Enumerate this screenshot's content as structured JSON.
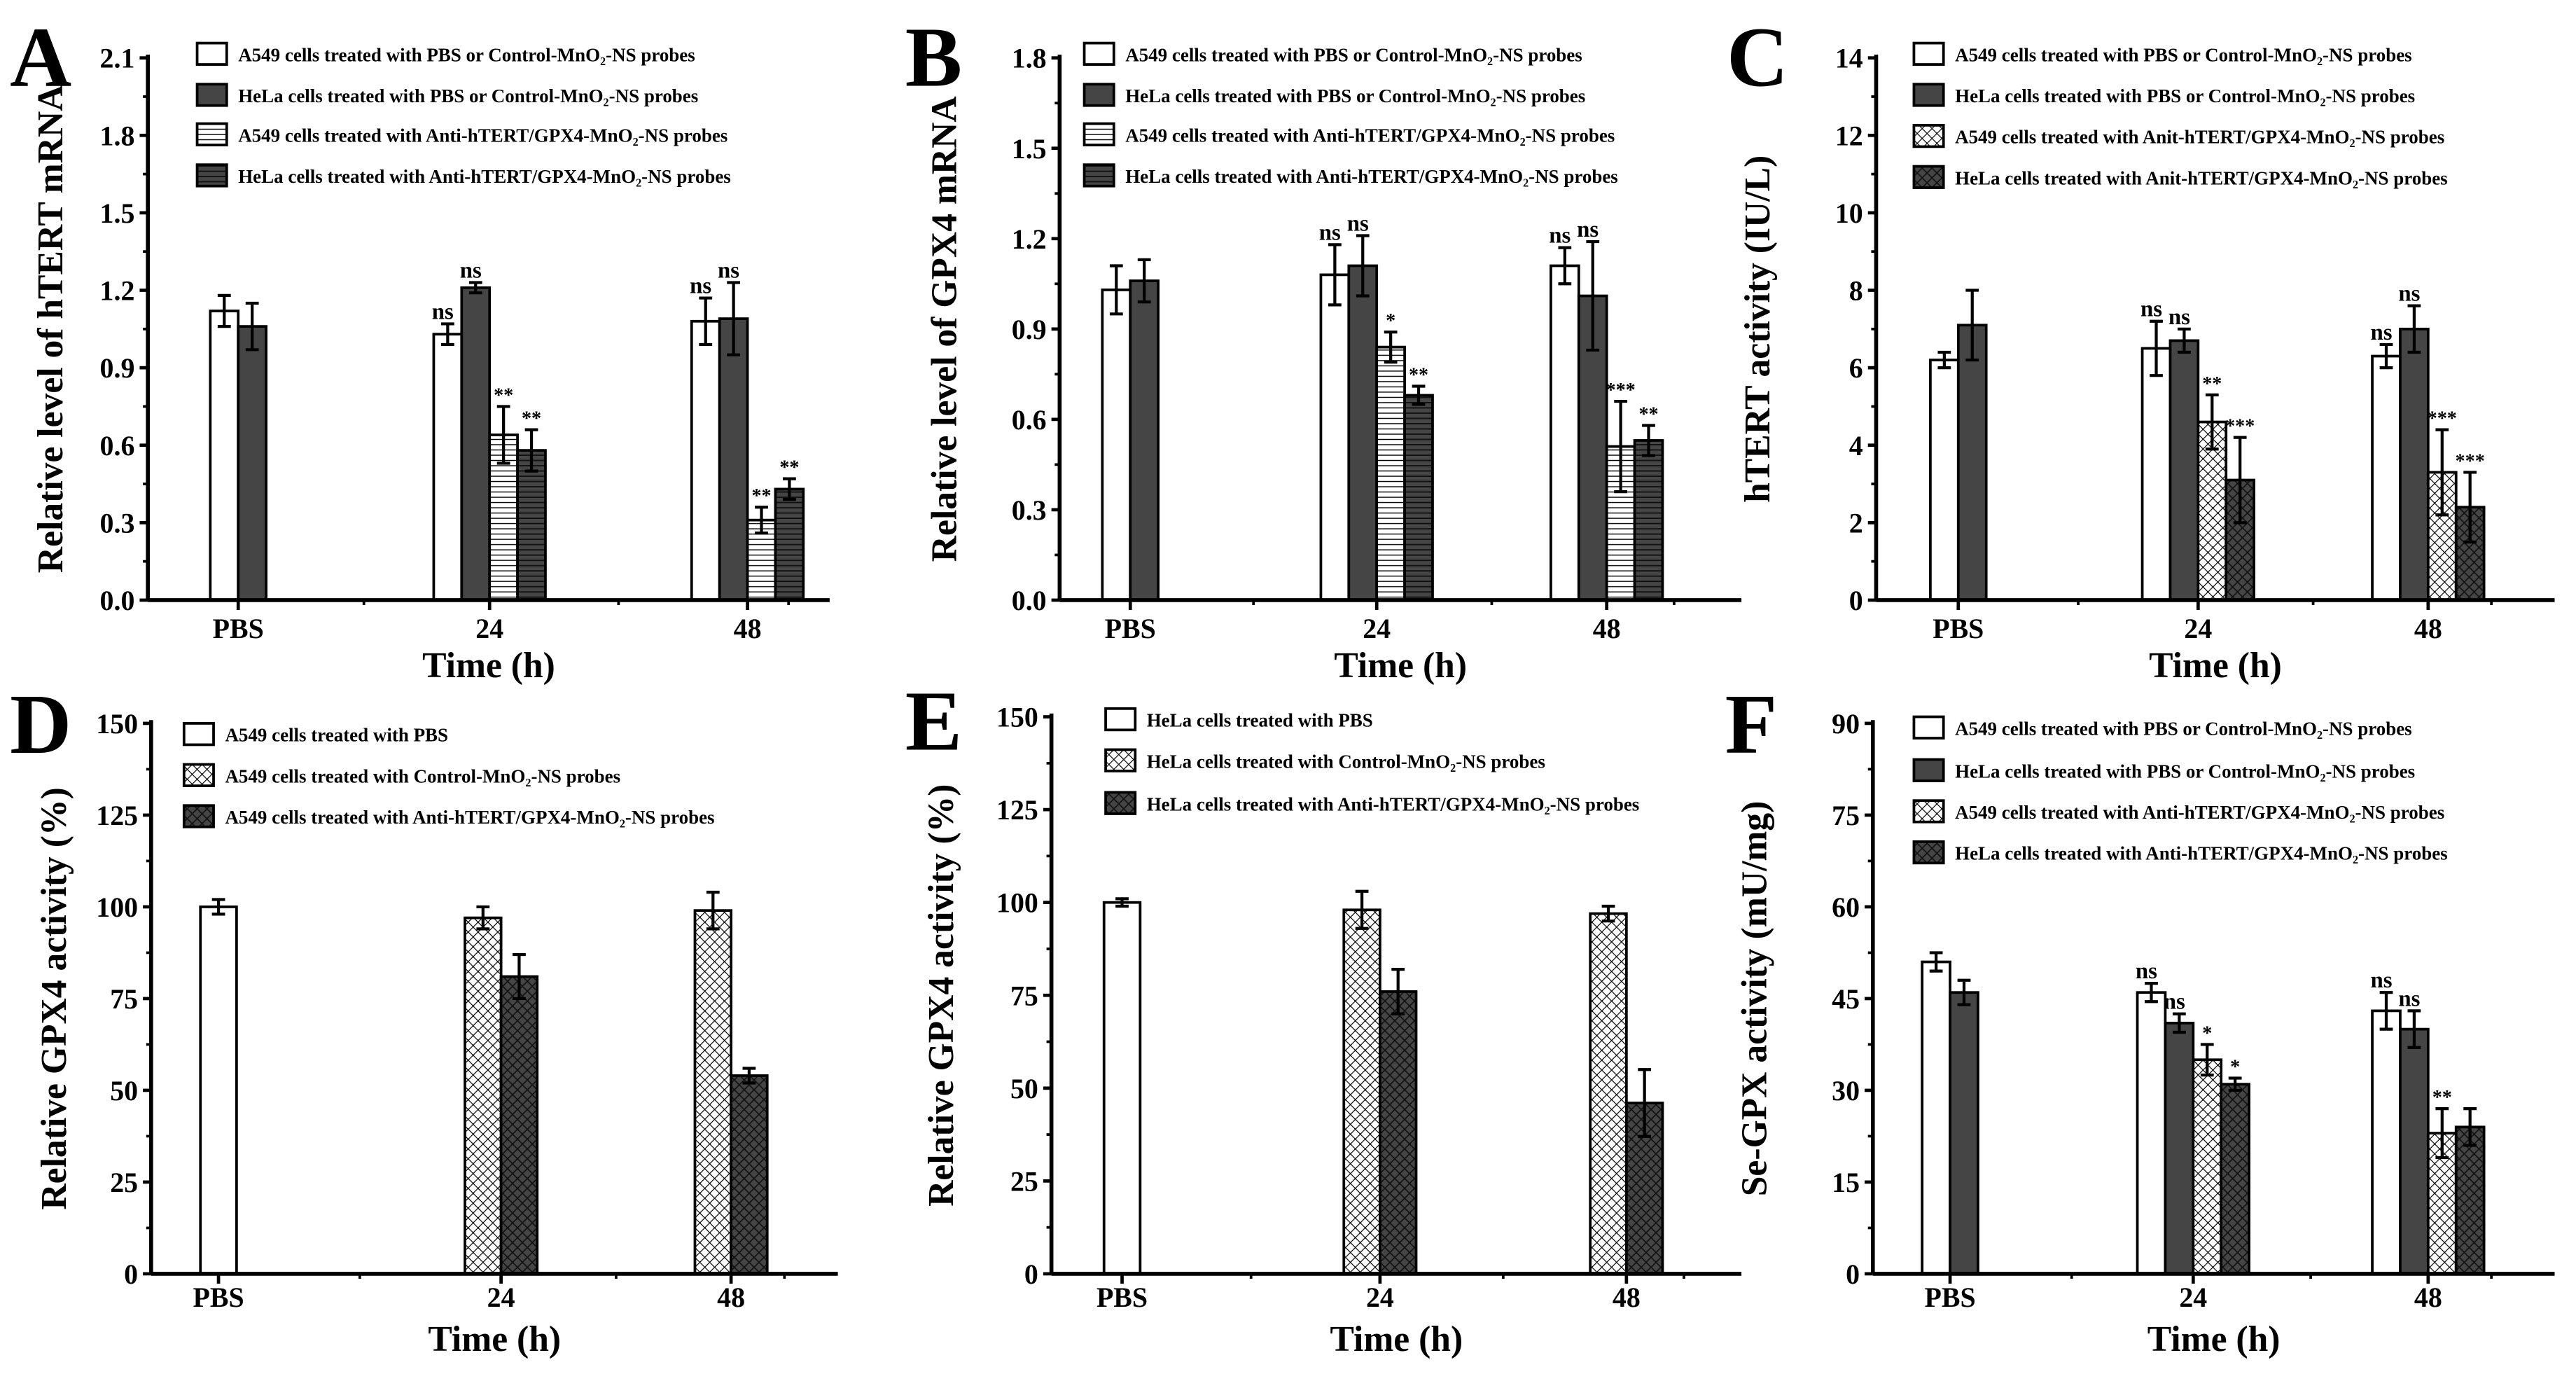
{
  "colors": {
    "dark": "#454545",
    "light": "#ffffff",
    "stroke": "#000000"
  },
  "chart_data": [
    {
      "panel": "A",
      "type": "bar",
      "ylabel": "Relative level of hTERT mRNA",
      "xlabel": "Time (h)",
      "categories": [
        "PBS",
        "24",
        "48"
      ],
      "ylim": [
        0,
        2.1
      ],
      "yticks": [
        "0.0",
        "0.3",
        "0.6",
        "0.9",
        "1.2",
        "1.5",
        "1.8",
        "2.1"
      ],
      "series": [
        {
          "name": "A549 cells treated with PBS or Control-MnO₂-NS probes",
          "pattern": "white",
          "values": [
            1.12,
            1.03,
            1.08
          ],
          "errors": [
            0.06,
            0.04,
            0.09
          ],
          "sig": [
            "",
            "ns",
            "ns"
          ]
        },
        {
          "name": "HeLa cells treated with PBS or Control-MnO₂-NS probes",
          "pattern": "dark",
          "values": [
            1.06,
            1.21,
            1.09
          ],
          "errors": [
            0.09,
            0.02,
            0.14
          ],
          "sig": [
            "",
            "ns",
            "ns"
          ]
        },
        {
          "name": "A549 cells treated with Anti-hTERT/GPX4-MnO₂-NS probes",
          "pattern": "white-hlines",
          "values": [
            null,
            0.64,
            0.31
          ],
          "errors": [
            null,
            0.11,
            0.05
          ],
          "sig": [
            "",
            "**",
            "**"
          ]
        },
        {
          "name": "HeLa cells treated with Anti-hTERT/GPX4-MnO₂-NS probes",
          "pattern": "dark-hlines",
          "values": [
            null,
            0.58,
            0.43
          ],
          "errors": [
            null,
            0.08,
            0.04
          ],
          "sig": [
            "",
            "**",
            "**"
          ]
        }
      ]
    },
    {
      "panel": "B",
      "type": "bar",
      "ylabel": "Relative level of GPX4 mRNA",
      "xlabel": "Time (h)",
      "categories": [
        "PBS",
        "24",
        "48"
      ],
      "ylim": [
        0,
        1.8
      ],
      "yticks": [
        "0.0",
        "0.3",
        "0.6",
        "0.9",
        "1.2",
        "1.5",
        "1.8"
      ],
      "series": [
        {
          "name": "A549 cells treated with PBS or Control-MnO₂-NS probes",
          "pattern": "white",
          "values": [
            1.03,
            1.08,
            1.11
          ],
          "errors": [
            0.08,
            0.1,
            0.06
          ],
          "sig": [
            "",
            "ns",
            "ns"
          ]
        },
        {
          "name": "HeLa cells treated with PBS or Control-MnO₂-NS probes",
          "pattern": "dark",
          "values": [
            1.06,
            1.11,
            1.01
          ],
          "errors": [
            0.07,
            0.1,
            0.18
          ],
          "sig": [
            "",
            "ns",
            "ns"
          ]
        },
        {
          "name": "A549 cells treated with Anti-hTERT/GPX4-MnO₂-NS probes",
          "pattern": "white-hlines",
          "values": [
            null,
            0.84,
            0.51
          ],
          "errors": [
            null,
            0.05,
            0.15
          ],
          "sig": [
            "",
            "*",
            "***"
          ]
        },
        {
          "name": "HeLa cells treated with Anti-hTERT/GPX4-MnO₂-NS probes",
          "pattern": "dark-hlines",
          "values": [
            null,
            0.68,
            0.53
          ],
          "errors": [
            null,
            0.03,
            0.05
          ],
          "sig": [
            "",
            "**",
            "**"
          ]
        }
      ]
    },
    {
      "panel": "C",
      "type": "bar",
      "ylabel": "hTERT  activity (IU/L)",
      "xlabel": "Time (h)",
      "categories": [
        "PBS",
        "24",
        "48"
      ],
      "ylim": [
        0,
        14
      ],
      "yticks": [
        "0",
        "2",
        "4",
        "6",
        "8",
        "10",
        "12",
        "14"
      ],
      "series": [
        {
          "name": "A549 cells treated with PBS or Control-MnO₂-NS probes",
          "pattern": "white",
          "values": [
            6.2,
            6.5,
            6.3
          ],
          "errors": [
            0.2,
            0.7,
            0.3
          ],
          "sig": [
            "",
            "ns",
            "ns"
          ]
        },
        {
          "name": "HeLa cells treated with PBS or Control-MnO₂-NS probes",
          "pattern": "dark",
          "values": [
            7.1,
            6.7,
            7.0
          ],
          "errors": [
            0.9,
            0.3,
            0.6
          ],
          "sig": [
            "",
            "ns",
            "ns"
          ]
        },
        {
          "name": "A549 cells treated with Anit-hTERT/GPX4-MnO₂-NS probes",
          "pattern": "white-cross",
          "values": [
            null,
            4.6,
            3.3
          ],
          "errors": [
            null,
            0.7,
            1.1
          ],
          "sig": [
            "",
            "**",
            "***"
          ]
        },
        {
          "name": "HeLa cells treated with Anit-hTERT/GPX4-MnO₂-NS probes",
          "pattern": "dark-cross",
          "values": [
            null,
            3.1,
            2.4
          ],
          "errors": [
            null,
            1.1,
            0.9
          ],
          "sig": [
            "",
            "***",
            "***"
          ]
        }
      ]
    },
    {
      "panel": "D",
      "type": "bar",
      "ylabel": "Relative GPX4  activity (%)",
      "xlabel": "Time (h)",
      "categories": [
        "PBS",
        "24",
        "48"
      ],
      "ylim": [
        0,
        150
      ],
      "yticks": [
        "0",
        "25",
        "50",
        "75",
        "100",
        "125",
        "150"
      ],
      "series": [
        {
          "name": "A549 cells treated with PBS",
          "pattern": "white",
          "values": [
            100,
            null,
            null
          ],
          "errors": [
            2,
            null,
            null
          ],
          "sig": [
            "",
            "",
            ""
          ]
        },
        {
          "name": "A549 cells treated with Control-MnO₂-NS probes",
          "pattern": "white-cross",
          "values": [
            null,
            97,
            99
          ],
          "errors": [
            null,
            3,
            5
          ],
          "sig": [
            "",
            "",
            ""
          ]
        },
        {
          "name": "A549 cells treated with Anti-hTERT/GPX4-MnO₂-NS probes",
          "pattern": "dark-cross",
          "values": [
            null,
            81,
            54
          ],
          "errors": [
            null,
            6,
            2
          ],
          "sig": [
            "",
            "",
            ""
          ]
        }
      ]
    },
    {
      "panel": "E",
      "type": "bar",
      "ylabel": "Relative GPX4  activity (%)",
      "xlabel": "Time (h)",
      "categories": [
        "PBS",
        "24",
        "48"
      ],
      "ylim": [
        0,
        150
      ],
      "yticks": [
        "0",
        "25",
        "50",
        "75",
        "100",
        "125",
        "150"
      ],
      "series": [
        {
          "name": "HeLa cells treated with PBS",
          "pattern": "white",
          "values": [
            100,
            null,
            null
          ],
          "errors": [
            1,
            null,
            null
          ],
          "sig": [
            "",
            "",
            ""
          ]
        },
        {
          "name": "HeLa cells treated with Control-MnO₂-NS probes",
          "pattern": "white-cross",
          "values": [
            null,
            98,
            97
          ],
          "errors": [
            null,
            5,
            2
          ],
          "sig": [
            "",
            "",
            ""
          ]
        },
        {
          "name": "HeLa cells treated with Anti-hTERT/GPX4-MnO₂-NS probes",
          "pattern": "dark-cross",
          "values": [
            null,
            76,
            46
          ],
          "errors": [
            null,
            6,
            9
          ],
          "sig": [
            "",
            "",
            ""
          ]
        }
      ]
    },
    {
      "panel": "F",
      "type": "bar",
      "ylabel": "Se-GPX  activity (mU/mg)",
      "xlabel": "Time (h)",
      "categories": [
        "PBS",
        "24",
        "48"
      ],
      "ylim": [
        0,
        90
      ],
      "yticks": [
        "0",
        "15",
        "30",
        "45",
        "60",
        "75",
        "90"
      ],
      "series": [
        {
          "name": "A549 cells treated with PBS or Control-MnO₂-NS probes",
          "pattern": "white",
          "values": [
            51,
            46,
            43
          ],
          "errors": [
            1.5,
            1.5,
            3
          ],
          "sig": [
            "",
            "ns",
            "ns"
          ]
        },
        {
          "name": "HeLa cells treated with PBS or Control-MnO₂-NS probes",
          "pattern": "dark",
          "values": [
            46,
            41,
            40
          ],
          "errors": [
            2,
            1.5,
            3
          ],
          "sig": [
            "",
            "ns",
            "ns"
          ]
        },
        {
          "name": "A549 cells treated with Anti-hTERT/GPX4-MnO₂-NS probes",
          "pattern": "white-cross",
          "values": [
            null,
            35,
            23
          ],
          "errors": [
            null,
            2.5,
            4
          ],
          "sig": [
            "",
            "*",
            "**"
          ]
        },
        {
          "name": "HeLa cells treated with Anti-hTERT/GPX4-MnO₂-NS probes",
          "pattern": "dark-cross",
          "values": [
            null,
            31,
            24
          ],
          "errors": [
            null,
            1,
            3
          ],
          "sig": [
            "",
            "*",
            ""
          ]
        }
      ]
    }
  ]
}
